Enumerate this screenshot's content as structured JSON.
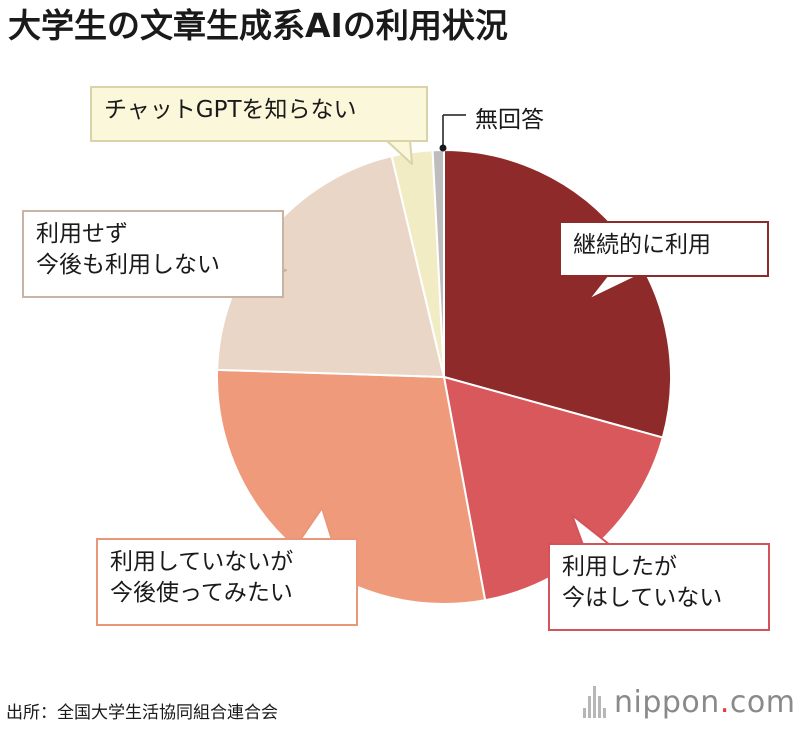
{
  "chart_data": {
    "type": "pie",
    "title": "大学生の文章生成系AIの利用状況",
    "start_angle_deg": 0,
    "direction": "clockwise",
    "slices": [
      {
        "label": "継続的に利用",
        "value": 29.3,
        "color": "#8e2a2a"
      },
      {
        "label": "利用したが 今はしていない",
        "value": 17.8,
        "color": "#d9585c"
      },
      {
        "label": "利用していないが 今後使ってみたい",
        "value": 28.4,
        "color": "#f09a7c"
      },
      {
        "label": "利用せず 今後も利用しない",
        "value": 20.8,
        "color": "#ead6c6"
      },
      {
        "label": "チャットGPTを知らない",
        "value": 2.9,
        "color": "#f1ecc4"
      },
      {
        "label": "無回答",
        "value": 0.8,
        "color": "#bdbdbd"
      }
    ]
  },
  "callouts": {
    "continued": {
      "lines": [
        "継続的に利用"
      ]
    },
    "used_stopped": {
      "lines": [
        "利用したが",
        "今はしていない"
      ]
    },
    "notuse_want": {
      "lines": [
        "利用していないが",
        "今後使ってみたい"
      ]
    },
    "notuse_future": {
      "lines": [
        "利用せず",
        "今後も利用しない"
      ]
    },
    "chatgpt": {
      "lines": [
        "チャットGPTを知らない"
      ]
    },
    "noanswer": "無回答"
  },
  "footer": {
    "source": "出所：全国大学生活協同組合連合会",
    "logo_main": "nippon",
    "logo_dot": ".",
    "logo_suffix": "com"
  }
}
